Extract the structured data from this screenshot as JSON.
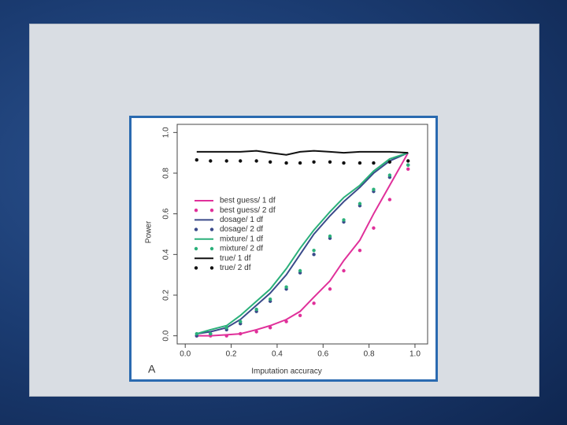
{
  "chart_data": {
    "type": "line",
    "panel_label": "A",
    "x_label": "Imputation accuracy",
    "y_label": "Power",
    "x": [
      0.05,
      0.11,
      0.18,
      0.24,
      0.31,
      0.37,
      0.44,
      0.5,
      0.56,
      0.63,
      0.69,
      0.76,
      0.82,
      0.89,
      0.97
    ],
    "series": [
      {
        "name": "best guess/ 1 df",
        "color": "#e0309a",
        "style": "line",
        "values": [
          0,
          0,
          0.005,
          0.01,
          0.03,
          0.05,
          0.08,
          0.12,
          0.19,
          0.27,
          0.37,
          0.47,
          0.6,
          0.74,
          0.9
        ]
      },
      {
        "name": "best guess/ 2 df",
        "color": "#e0309a",
        "style": "dots",
        "values": [
          0,
          0,
          0,
          0.01,
          0.02,
          0.04,
          0.07,
          0.1,
          0.16,
          0.23,
          0.32,
          0.42,
          0.53,
          0.67,
          0.82
        ]
      },
      {
        "name": "dosage/ 1 df",
        "color": "#3a4a8a",
        "style": "line",
        "values": [
          0.01,
          0.02,
          0.04,
          0.08,
          0.15,
          0.21,
          0.3,
          0.4,
          0.5,
          0.59,
          0.66,
          0.73,
          0.8,
          0.86,
          0.9
        ]
      },
      {
        "name": "dosage/ 2 df",
        "color": "#3a4a8a",
        "style": "dots",
        "values": [
          0,
          0.01,
          0.03,
          0.06,
          0.12,
          0.17,
          0.23,
          0.31,
          0.4,
          0.48,
          0.56,
          0.64,
          0.71,
          0.78,
          0.84
        ]
      },
      {
        "name": "mixture/ 1 df",
        "color": "#2bb07a",
        "style": "line",
        "values": [
          0.01,
          0.03,
          0.05,
          0.1,
          0.17,
          0.23,
          0.33,
          0.43,
          0.52,
          0.61,
          0.68,
          0.74,
          0.81,
          0.87,
          0.9
        ]
      },
      {
        "name": "mixture/ 2 df",
        "color": "#2bb07a",
        "style": "dots",
        "values": [
          0.01,
          0.01,
          0.04,
          0.07,
          0.13,
          0.18,
          0.24,
          0.32,
          0.42,
          0.49,
          0.57,
          0.65,
          0.72,
          0.79,
          0.84
        ]
      },
      {
        "name": "true/ 1 df",
        "color": "#111111",
        "style": "line",
        "values": [
          0.905,
          0.905,
          0.905,
          0.905,
          0.91,
          0.9,
          0.89,
          0.905,
          0.91,
          0.905,
          0.9,
          0.905,
          0.905,
          0.905,
          0.9
        ]
      },
      {
        "name": "true/ 2 df",
        "color": "#111111",
        "style": "dots",
        "values": [
          0.865,
          0.86,
          0.86,
          0.86,
          0.86,
          0.855,
          0.85,
          0.85,
          0.855,
          0.855,
          0.85,
          0.85,
          0.85,
          0.855,
          0.86
        ]
      }
    ],
    "xlim": [
      -0.035,
      1.055
    ],
    "ylim": [
      -0.04,
      1.04
    ],
    "xticks": [
      {
        "value": 0,
        "label": "0.0"
      },
      0.2,
      0.4,
      0.6,
      0.8,
      {
        "value": 1,
        "label": "1.0"
      }
    ],
    "yticks": [
      {
        "value": 0,
        "label": "0.0"
      },
      0.2,
      0.4,
      0.6,
      0.8,
      {
        "value": 1,
        "label": "1.0"
      }
    ],
    "legend": "left"
  }
}
